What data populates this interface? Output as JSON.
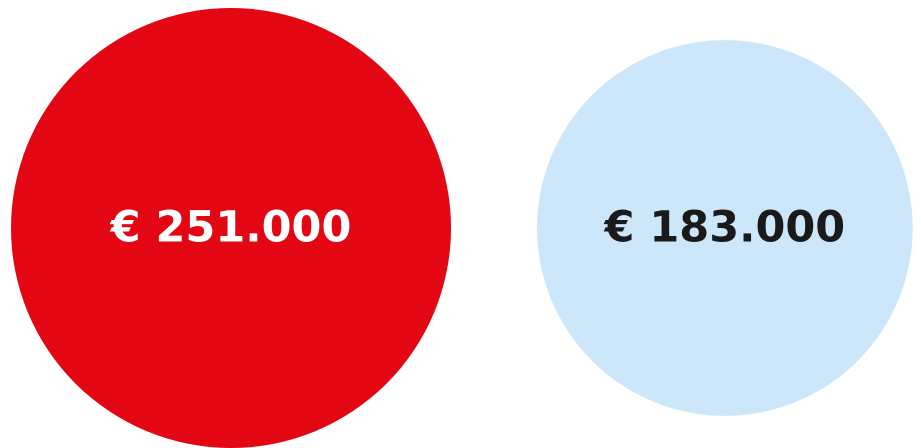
{
  "chart_data": {
    "type": "bubble",
    "values": [
      251000,
      183000
    ],
    "value_labels": [
      "€ 251.000",
      "€ 183.000"
    ],
    "colors": [
      "#e30613",
      "#cce7f9"
    ],
    "label_colors": [
      "#ffffff",
      "#1a1a1a"
    ]
  }
}
